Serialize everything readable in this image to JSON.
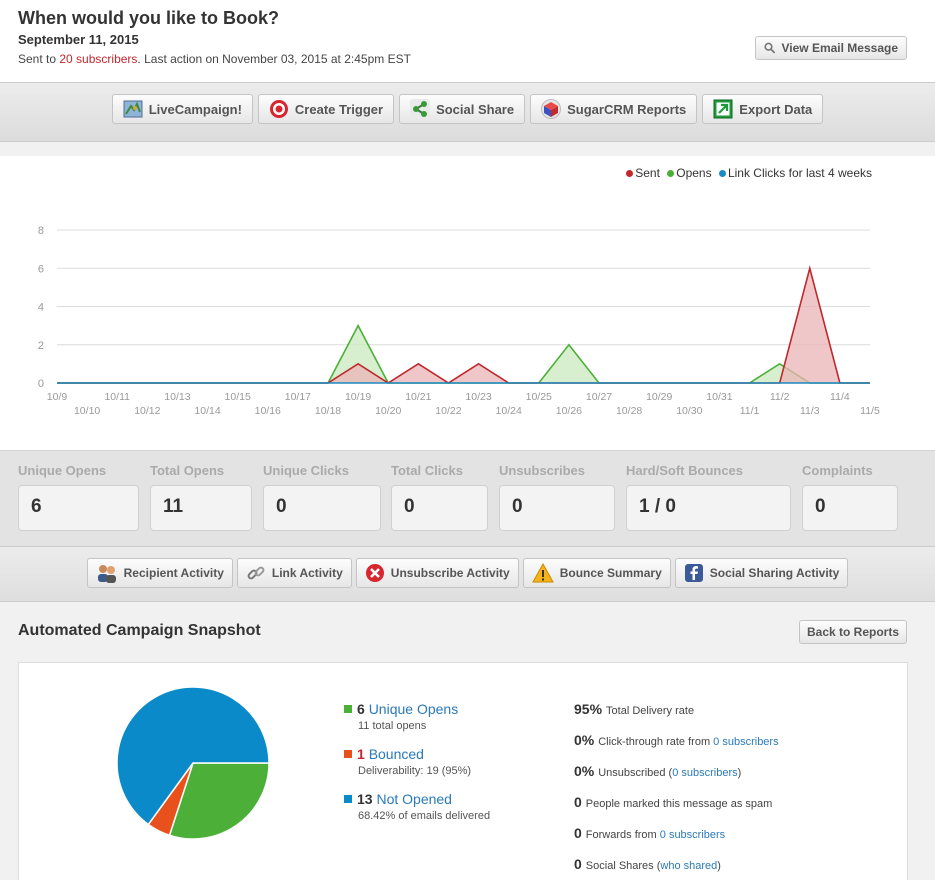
{
  "header": {
    "title": "When would you like to Book?",
    "date": "September 11, 2015",
    "sent_prefix": "Sent to ",
    "sent_link": "20 subscribers",
    "sent_suffix": ". Last action on November 03, 2015 at 2:45pm EST",
    "view_email": "View Email Message"
  },
  "toolbar": [
    {
      "label": "LiveCampaign!",
      "icon": "map-icon"
    },
    {
      "label": "Create Trigger",
      "icon": "target-icon"
    },
    {
      "label": "Social Share",
      "icon": "share-icon"
    },
    {
      "label": "SugarCRM Reports",
      "icon": "cube-icon"
    },
    {
      "label": "Export Data",
      "icon": "export-icon"
    }
  ],
  "legend": {
    "sent": "Sent",
    "opens": "Opens",
    "clicks": "Link Clicks for last 4 weeks"
  },
  "chart_data": {
    "type": "area",
    "title": "",
    "legend_position": "top-right",
    "categories": [
      "10/9",
      "10/10",
      "10/11",
      "10/12",
      "10/13",
      "10/14",
      "10/15",
      "10/16",
      "10/17",
      "10/18",
      "10/19",
      "10/20",
      "10/21",
      "10/22",
      "10/23",
      "10/24",
      "10/25",
      "10/26",
      "10/27",
      "10/28",
      "10/29",
      "10/30",
      "10/31",
      "11/1",
      "11/2",
      "11/3",
      "11/4",
      "11/5"
    ],
    "ylim": [
      0,
      8
    ],
    "yticks": [
      0,
      2,
      4,
      6,
      8
    ],
    "grid": true,
    "series": [
      {
        "name": "Sent",
        "color": "#c0282d",
        "fill": "#ebb4b6",
        "values": [
          0,
          0,
          0,
          0,
          0,
          0,
          0,
          0,
          0,
          0,
          1,
          0,
          1,
          0,
          1,
          0,
          0,
          0,
          0,
          0,
          0,
          0,
          0,
          0,
          0,
          6,
          0,
          0
        ]
      },
      {
        "name": "Opens",
        "color": "#4cb038",
        "fill": "#c9e8bf",
        "values": [
          0,
          0,
          0,
          0,
          0,
          0,
          0,
          0,
          0,
          0,
          3,
          0,
          0,
          0,
          0,
          0,
          0,
          2,
          0,
          0,
          0,
          0,
          0,
          0,
          1,
          0,
          0,
          0
        ]
      },
      {
        "name": "Link Clicks",
        "color": "#1a8ac2",
        "fill": "none",
        "values": [
          0,
          0,
          0,
          0,
          0,
          0,
          0,
          0,
          0,
          0,
          0,
          0,
          0,
          0,
          0,
          0,
          0,
          0,
          0,
          0,
          0,
          0,
          0,
          0,
          0,
          0,
          0,
          0
        ]
      }
    ],
    "colors": {
      "sent": "#c0282d",
      "opens": "#4cb038",
      "clicks": "#1a8ac2"
    }
  },
  "stats": [
    {
      "label": "Unique Opens",
      "value": "6"
    },
    {
      "label": "Total Opens",
      "value": "11"
    },
    {
      "label": "Unique Clicks",
      "value": "0"
    },
    {
      "label": "Total Clicks",
      "value": "0"
    },
    {
      "label": "Unsubscribes",
      "value": "0"
    },
    {
      "label": "Hard/Soft Bounces",
      "value": "1 / 0"
    },
    {
      "label": "Complaints",
      "value": "0"
    }
  ],
  "activity": [
    {
      "label": "Recipient Activity",
      "icon": "people-icon"
    },
    {
      "label": "Link Activity",
      "icon": "chain-link-icon"
    },
    {
      "label": "Unsubscribe Activity",
      "icon": "red-x-icon"
    },
    {
      "label": "Bounce Summary",
      "icon": "warning-icon"
    },
    {
      "label": "Social Sharing Activity",
      "icon": "facebook-icon"
    }
  ],
  "snapshot": {
    "title": "Automated Campaign Snapshot",
    "back": "Back to Reports",
    "pie": [
      {
        "count": "6",
        "label": "Unique Opens",
        "sub": "11 total opens",
        "color": "#4cb038",
        "value": 6
      },
      {
        "count": "1",
        "label": "Bounced",
        "sub": "Deliverability: 19 (95%)",
        "color": "#e8501c",
        "value": 1
      },
      {
        "count": "13",
        "label": "Not Opened",
        "sub": "68.42% of emails delivered",
        "color": "#0b8ac9",
        "value": 13
      }
    ],
    "metrics": [
      {
        "num": "95%",
        "text": "Total Delivery rate",
        "link": "",
        "after": ""
      },
      {
        "num": "0%",
        "text": "Click-through rate from ",
        "link": "0 subscribers",
        "after": ""
      },
      {
        "num": "0%",
        "text": "Unsubscribed (",
        "link": "0 subscribers",
        "after": ")"
      },
      {
        "num": "0",
        "text": "People marked this message as spam",
        "link": "",
        "after": ""
      },
      {
        "num": "0",
        "text": "Forwards from ",
        "link": "0 subscribers",
        "after": ""
      },
      {
        "num": "0",
        "text": "Social Shares (",
        "link": "who shared",
        "after": ")"
      }
    ]
  }
}
